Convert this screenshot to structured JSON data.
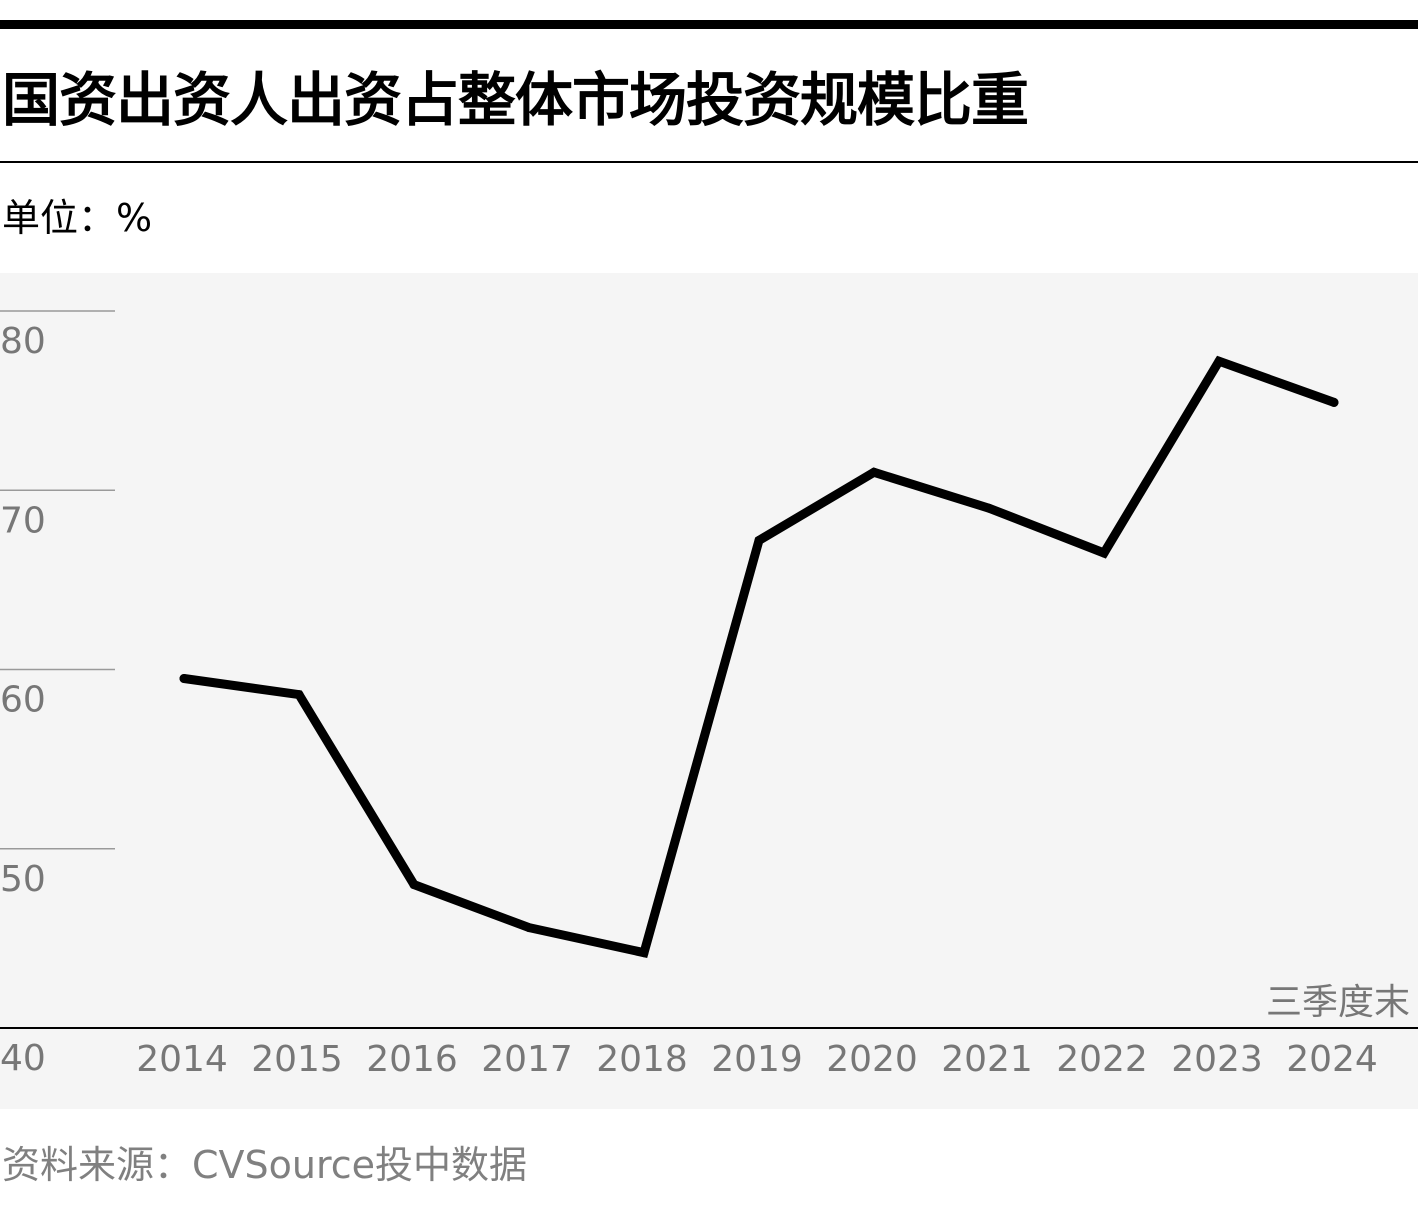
{
  "chart_data": {
    "type": "line",
    "title": "国资出资人出资占整体市场投资规模比重",
    "unit_label": "单位：%",
    "annotation": "三季度末",
    "source": "资料来源：CVSource投中数据",
    "categories": [
      "2014",
      "2015",
      "2016",
      "2017",
      "2018",
      "2019",
      "2020",
      "2021",
      "2022",
      "2023",
      "2024"
    ],
    "series": [
      {
        "values": [
          59.5,
          58.6,
          48.0,
          45.6,
          44.2,
          67.2,
          71.0,
          69.0,
          66.5,
          77.2,
          74.9
        ]
      }
    ],
    "y_ticks": [
      "80",
      "70",
      "60",
      "50",
      "40"
    ],
    "ylim": [
      40,
      80
    ],
    "grid": true,
    "line_color": "#000000"
  }
}
